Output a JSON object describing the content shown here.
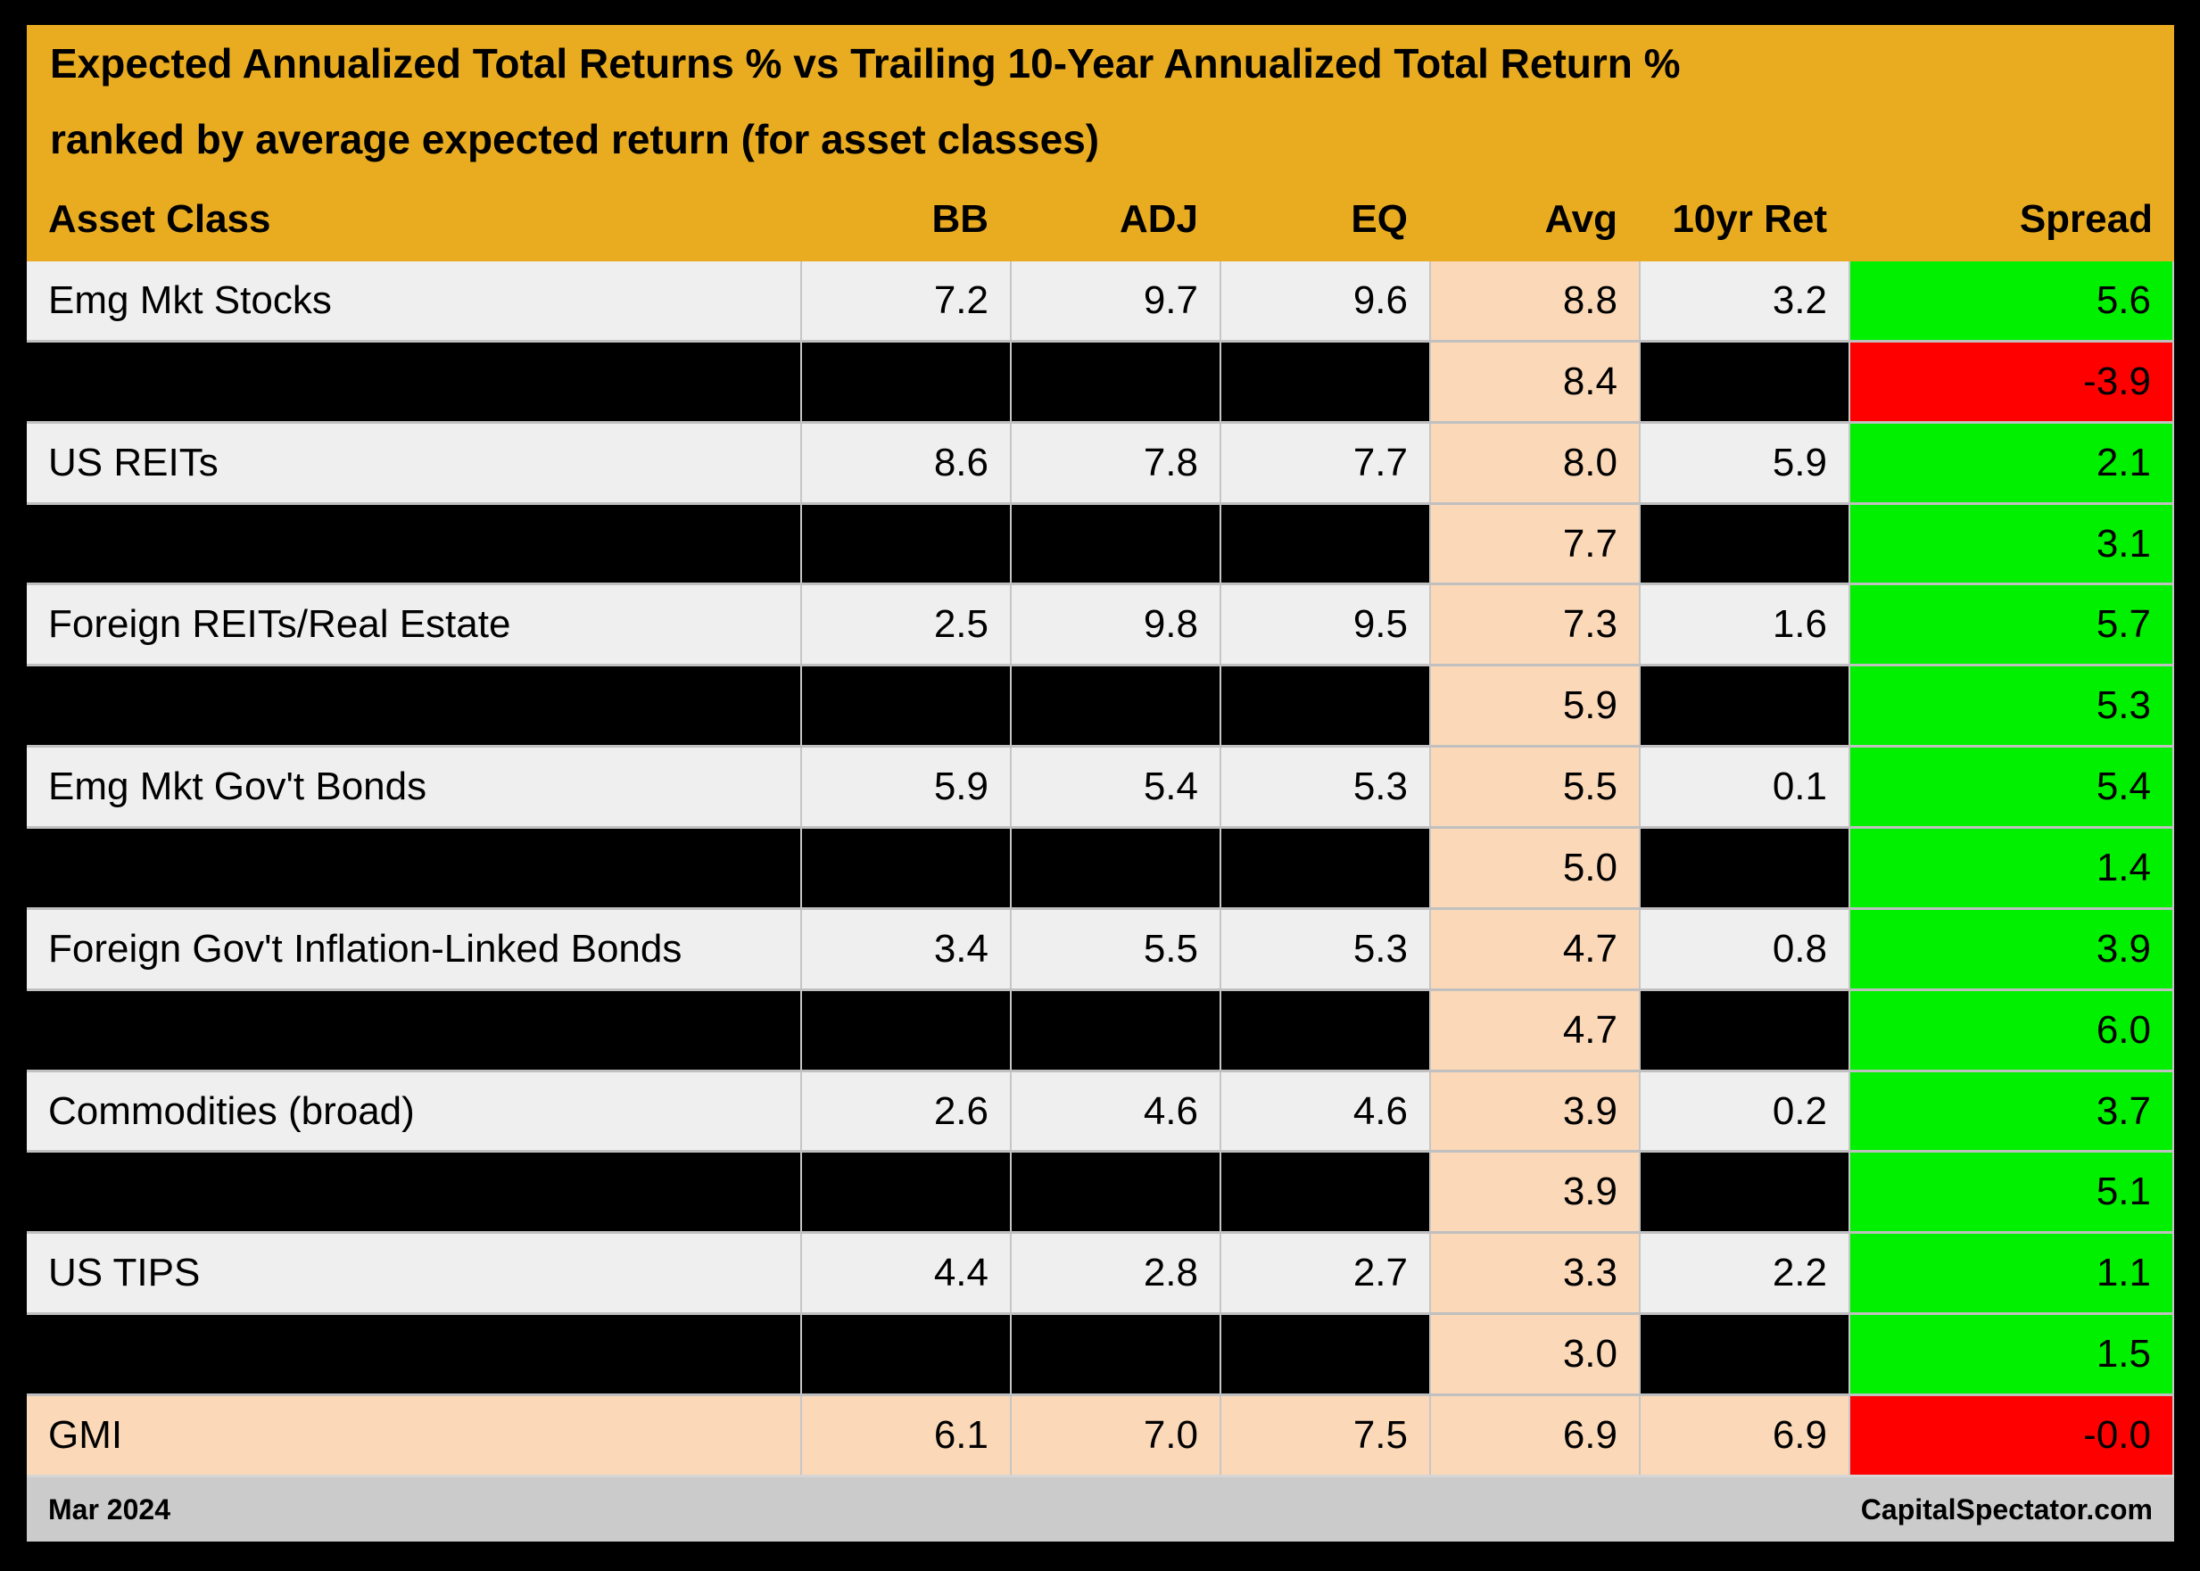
{
  "header": {
    "title_line1": "Expected Annualized Total Returns % vs Trailing 10-Year Annualized Total Return %",
    "title_line2": "ranked by average expected return (for asset classes)"
  },
  "columns": {
    "asset": "Asset Class",
    "bb": "BB",
    "adj": "ADJ",
    "eq": "EQ",
    "avg": "Avg",
    "ret10": "10yr Ret",
    "spread": "Spread"
  },
  "rows": [
    {
      "asset": "Emg Mkt Stocks",
      "bb": "7.2",
      "adj": "9.7",
      "eq": "9.6",
      "avg": "8.8",
      "ret10": "3.2",
      "spread": "5.6"
    },
    {
      "avg": "8.4",
      "spread": "-3.9"
    },
    {
      "asset": "US REITs",
      "bb": "8.6",
      "adj": "7.8",
      "eq": "7.7",
      "avg": "8.0",
      "ret10": "5.9",
      "spread": "2.1"
    },
    {
      "avg": "7.7",
      "spread": "3.1"
    },
    {
      "asset": "Foreign REITs/Real Estate",
      "bb": "2.5",
      "adj": "9.8",
      "eq": "9.5",
      "avg": "7.3",
      "ret10": "1.6",
      "spread": "5.7"
    },
    {
      "avg": "5.9",
      "spread": "5.3"
    },
    {
      "asset": "Emg Mkt Gov't Bonds",
      "bb": "5.9",
      "adj": "5.4",
      "eq": "5.3",
      "avg": "5.5",
      "ret10": "0.1",
      "spread": "5.4"
    },
    {
      "avg": "5.0",
      "spread": "1.4"
    },
    {
      "asset": "Foreign Gov't Inflation-Linked Bonds",
      "bb": "3.4",
      "adj": "5.5",
      "eq": "5.3",
      "avg": "4.7",
      "ret10": "0.8",
      "spread": "3.9"
    },
    {
      "avg": "4.7",
      "spread": "6.0"
    },
    {
      "asset": "Commodities (broad)",
      "bb": "2.6",
      "adj": "4.6",
      "eq": "4.6",
      "avg": "3.9",
      "ret10": "0.2",
      "spread": "3.7"
    },
    {
      "avg": "3.9",
      "spread": "5.1"
    },
    {
      "asset": "US TIPS",
      "bb": "4.4",
      "adj": "2.8",
      "eq": "2.7",
      "avg": "3.3",
      "ret10": "2.2",
      "spread": "1.1"
    },
    {
      "avg": "3.0",
      "spread": "1.5"
    },
    {
      "asset": "GMI",
      "bb": "6.1",
      "adj": "7.0",
      "eq": "7.5",
      "avg": "6.9",
      "ret10": "6.9",
      "spread": "-0.0"
    }
  ],
  "footer": {
    "date": "Mar 2024",
    "site": "CapitalSpectator.com"
  },
  "colors": {
    "page_bg": "#000000",
    "header_gold": "#E9AC21",
    "row_gray": "#EFEFEF",
    "row_black": "#000000",
    "avg_peach": "#FBD8B7",
    "spread_green": "#00F000",
    "spread_red": "#FF0000",
    "footer_gray": "#CBCBCB",
    "grid_line": "#C6C6C6",
    "row_separator": "#C0C0C0"
  },
  "chart_data": {
    "type": "table",
    "title": "Expected Annualized Total Returns % vs Trailing 10-Year Annualized Total Return % ranked by average expected return (for asset classes)",
    "columns": [
      "Asset Class",
      "BB",
      "ADJ",
      "EQ",
      "Avg",
      "10yr Ret",
      "Spread"
    ],
    "rows": [
      [
        "Emg Mkt Stocks",
        7.2,
        9.7,
        9.6,
        8.8,
        3.2,
        5.6
      ],
      [
        null,
        null,
        null,
        null,
        8.4,
        null,
        -3.9
      ],
      [
        "US REITs",
        8.6,
        7.8,
        7.7,
        8.0,
        5.9,
        2.1
      ],
      [
        null,
        null,
        null,
        null,
        7.7,
        null,
        3.1
      ],
      [
        "Foreign REITs/Real Estate",
        2.5,
        9.8,
        9.5,
        7.3,
        1.6,
        5.7
      ],
      [
        null,
        null,
        null,
        null,
        5.9,
        null,
        5.3
      ],
      [
        "Emg Mkt Gov't Bonds",
        5.9,
        5.4,
        5.3,
        5.5,
        0.1,
        5.4
      ],
      [
        null,
        null,
        null,
        null,
        5.0,
        null,
        1.4
      ],
      [
        "Foreign Gov't Inflation-Linked Bonds",
        3.4,
        5.5,
        5.3,
        4.7,
        0.8,
        3.9
      ],
      [
        null,
        null,
        null,
        null,
        4.7,
        null,
        6.0
      ],
      [
        "Commodities (broad)",
        2.6,
        4.6,
        4.6,
        3.9,
        0.2,
        3.7
      ],
      [
        null,
        null,
        null,
        null,
        3.9,
        null,
        5.1
      ],
      [
        "US TIPS",
        4.4,
        2.8,
        2.7,
        3.3,
        2.2,
        1.1
      ],
      [
        null,
        null,
        null,
        null,
        3.0,
        null,
        1.5
      ],
      [
        "GMI",
        6.1,
        7.0,
        7.5,
        6.9,
        6.9,
        -0.0
      ]
    ],
    "notes": "Blacked-out (redacted) rows show only Avg and Spread values. Spread cell background is green for positive values, red for negative. Avg column shaded peach. Footer: Mar 2024 / CapitalSpectator.com",
    "spread_cell_colors": [
      "green",
      "red",
      "green",
      "green",
      "green",
      "green",
      "green",
      "green",
      "green",
      "green",
      "green",
      "green",
      "green",
      "green",
      "red"
    ]
  }
}
